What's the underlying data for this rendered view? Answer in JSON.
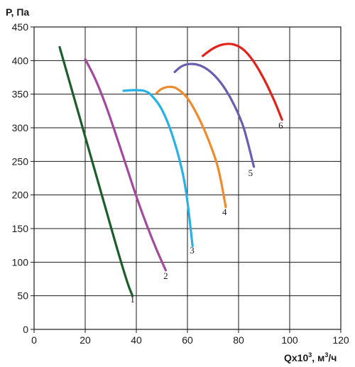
{
  "chart_data": {
    "type": "line",
    "title": "",
    "ylabel": "P, Па",
    "xlabel_main": "Qx10",
    "xlabel_sup": "3",
    "xlabel_sep": ", м",
    "xlabel_unit_sup": "3",
    "xlabel_tail": "/ч",
    "xlim": [
      0,
      120
    ],
    "ylim": [
      0,
      450
    ],
    "x_ticks": [
      "0",
      "20",
      "40",
      "60",
      "80",
      "100",
      "120"
    ],
    "y_ticks": [
      "0",
      "50",
      "100",
      "150",
      "200",
      "250",
      "300",
      "350",
      "400",
      "450"
    ],
    "x_tick_values": [
      0,
      20,
      40,
      60,
      80,
      100,
      120
    ],
    "y_tick_values": [
      0,
      50,
      100,
      150,
      200,
      250,
      300,
      350,
      400,
      450
    ],
    "grid": true,
    "series": [
      {
        "name": "1",
        "color": "#1b5e2a",
        "points": [
          [
            10,
            420
          ],
          [
            14.5,
            360
          ],
          [
            19,
            300
          ],
          [
            23.5,
            240
          ],
          [
            28,
            180
          ],
          [
            32.5,
            120
          ],
          [
            36.5,
            70
          ],
          [
            38.5,
            50
          ]
        ]
      },
      {
        "name": "2",
        "color": "#a44a9c",
        "points": [
          [
            20,
            402
          ],
          [
            24,
            372
          ],
          [
            28,
            334
          ],
          [
            32,
            290
          ],
          [
            36,
            244
          ],
          [
            40,
            198
          ],
          [
            44,
            156
          ],
          [
            48,
            118
          ],
          [
            51.5,
            88
          ]
        ]
      },
      {
        "name": "3",
        "color": "#27b1e6",
        "points": [
          [
            35,
            355
          ],
          [
            39,
            356
          ],
          [
            43,
            355
          ],
          [
            46,
            348
          ],
          [
            50,
            327
          ],
          [
            54,
            290
          ],
          [
            58,
            235
          ],
          [
            60,
            190
          ],
          [
            62,
            124
          ]
        ]
      },
      {
        "name": "4",
        "color": "#f08a2c",
        "points": [
          [
            48,
            352
          ],
          [
            50,
            358
          ],
          [
            53,
            361
          ],
          [
            56,
            358
          ],
          [
            60,
            344
          ],
          [
            64,
            318
          ],
          [
            68,
            284
          ],
          [
            72,
            240
          ],
          [
            75,
            182
          ]
        ]
      },
      {
        "name": "5",
        "color": "#6a5eaf",
        "points": [
          [
            55,
            383
          ],
          [
            58,
            392
          ],
          [
            62,
            395
          ],
          [
            66,
            391
          ],
          [
            70,
            380
          ],
          [
            74,
            362
          ],
          [
            78,
            336
          ],
          [
            82,
            300
          ],
          [
            86,
            242
          ]
        ]
      },
      {
        "name": "6",
        "color": "#e32119",
        "points": [
          [
            66,
            407
          ],
          [
            70,
            418
          ],
          [
            74,
            424
          ],
          [
            78,
            424
          ],
          [
            82,
            416
          ],
          [
            86,
            398
          ],
          [
            90,
            372
          ],
          [
            94,
            340
          ],
          [
            97,
            312
          ]
        ]
      }
    ],
    "curve_labels": [
      {
        "text": "1",
        "x": 38.5,
        "y": 40
      },
      {
        "text": "2",
        "x": 51.5,
        "y": 75
      },
      {
        "text": "3",
        "x": 61.8,
        "y": 113
      },
      {
        "text": "4",
        "x": 74.5,
        "y": 170
      },
      {
        "text": "5",
        "x": 84.7,
        "y": 228
      },
      {
        "text": "6",
        "x": 96.5,
        "y": 299
      }
    ]
  }
}
